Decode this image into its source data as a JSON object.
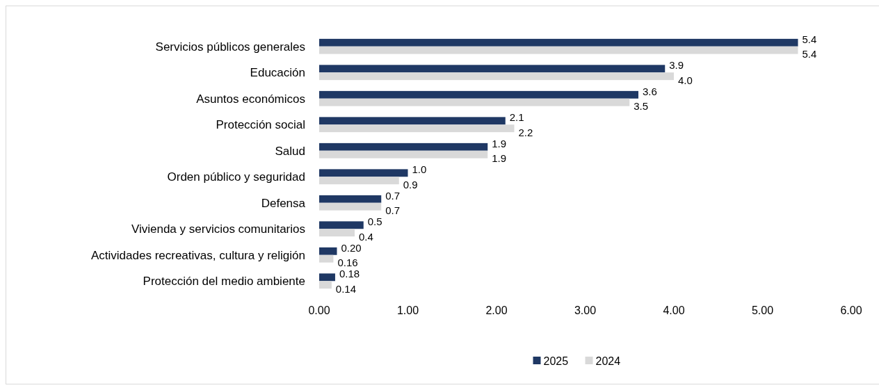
{
  "chart_data": {
    "type": "bar",
    "orientation": "horizontal",
    "categories": [
      "Servicios públicos generales",
      "Educación",
      "Asuntos económicos",
      "Protección social",
      "Salud",
      "Orden público y seguridad",
      "Defensa",
      "Vivienda y servicios comunitarios",
      "Actividades recreativas, cultura y religión",
      "Protección del medio ambiente"
    ],
    "series": [
      {
        "name": "2025",
        "color": "#1f3864",
        "values": [
          5.4,
          3.9,
          3.6,
          2.1,
          1.9,
          1.0,
          0.7,
          0.5,
          0.2,
          0.18
        ],
        "value_labels": [
          "5.4",
          "3.9",
          "3.6",
          "2.1",
          "1.9",
          "1.0",
          "0.7",
          "0.5",
          "0.20",
          "0.18"
        ]
      },
      {
        "name": "2024",
        "color": "#d9d9d9",
        "values": [
          5.4,
          4.0,
          3.5,
          2.2,
          1.9,
          0.9,
          0.7,
          0.4,
          0.16,
          0.14
        ],
        "value_labels": [
          "5.4",
          "4.0",
          "3.5",
          "2.2",
          "1.9",
          "0.9",
          "0.7",
          "0.4",
          "0.16",
          "0.14"
        ]
      }
    ],
    "xlim": [
      0,
      6
    ],
    "xticks": [
      {
        "value": 0,
        "label": "0.00"
      },
      {
        "value": 1,
        "label": "1.00"
      },
      {
        "value": 2,
        "label": "2.00"
      },
      {
        "value": 3,
        "label": "3.00"
      },
      {
        "value": 4,
        "label": "4.00"
      },
      {
        "value": 5,
        "label": "5.00"
      },
      {
        "value": 6,
        "label": "6.00"
      }
    ],
    "grid": false,
    "legend": "bottom"
  }
}
